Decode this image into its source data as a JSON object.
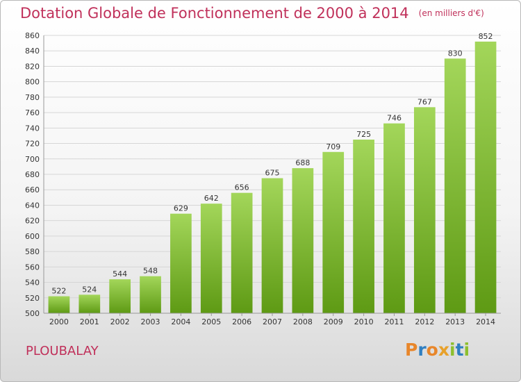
{
  "header": {
    "title": "Dotation Globale de Fonctionnement de 2000 à 2014",
    "subtitle": "(en milliers d'€)"
  },
  "footer": {
    "place": "PLOUBALAY",
    "logo": "Proxiti",
    "logo_colors": [
      "#e8862a",
      "#2f7fc1",
      "#e8862a",
      "#e8a12a",
      "#8dbf2e",
      "#2f7fc1",
      "#8dbf2e"
    ]
  },
  "colors": {
    "bar_top": "#a3d65a",
    "bar_bottom": "#5e9a14",
    "grid": "#d6d6d6",
    "axis_text": "#333333",
    "title": "#c0305a"
  },
  "chart_data": {
    "type": "bar",
    "categories": [
      "2000",
      "2001",
      "2002",
      "2003",
      "2004",
      "2005",
      "2006",
      "2007",
      "2008",
      "2009",
      "2010",
      "2011",
      "2012",
      "2013",
      "2014"
    ],
    "values": [
      522,
      524,
      544,
      548,
      629,
      642,
      656,
      675,
      688,
      709,
      725,
      746,
      767,
      830,
      852
    ],
    "data_labels": [
      "522",
      "524",
      "544",
      "548",
      "629",
      "642",
      "656",
      "675",
      "688",
      "709",
      "725",
      "746",
      "767",
      "830",
      "852"
    ],
    "title": "Dotation Globale de Fonctionnement de 2000 à 2014",
    "subtitle": "(en milliers d'€)",
    "xlabel": "",
    "ylabel": "",
    "ylim": [
      500,
      860
    ],
    "yticks": [
      500,
      520,
      540,
      560,
      580,
      600,
      620,
      640,
      660,
      680,
      700,
      720,
      740,
      760,
      780,
      800,
      820,
      840,
      860
    ],
    "grid": true,
    "legend": "none"
  }
}
